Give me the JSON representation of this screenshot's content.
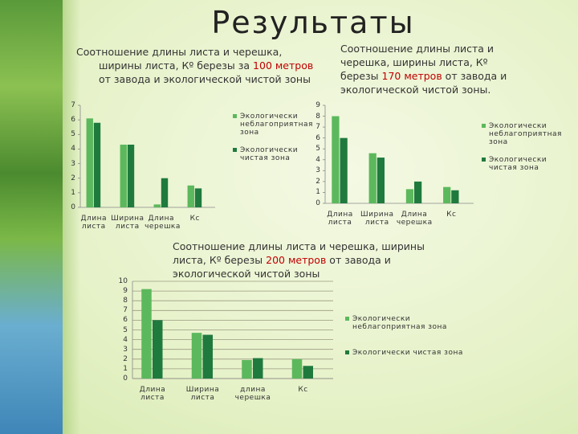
{
  "slide_title": "Результаты",
  "chart_data": [
    {
      "type": "bar",
      "title": [
        {
          "text": "Соотношение длины листа и черешка, ширины листа, Кº березы за ",
          "color": "#333333"
        },
        {
          "text": "100 метров",
          "color": "#c00000"
        },
        {
          "text": " от завода и экологической чистой зоны",
          "color": "#333333"
        }
      ],
      "categories": [
        "Длина листа",
        "Ширина листа",
        "Длина черешка",
        "Кс"
      ],
      "series": [
        {
          "name": "Экологически неблагоприятная зона",
          "color": "#5cb85c",
          "values": [
            6.1,
            4.3,
            0.2,
            1.5
          ]
        },
        {
          "name": "Экологически чистая зона",
          "color": "#1f7a3e",
          "values": [
            5.8,
            4.3,
            2.0,
            1.3
          ]
        }
      ],
      "ylim": [
        0,
        7
      ],
      "yticks": [
        0,
        1,
        2,
        3,
        4,
        5,
        6,
        7
      ],
      "grid": false
    },
    {
      "type": "bar",
      "title": [
        {
          "text": "Соотношение длины листа и черешка, ширины листа, Кº березы ",
          "color": "#333333"
        },
        {
          "text": "170 метров",
          "color": "#c00000"
        },
        {
          "text": " от завода и экологической чистой зоны.",
          "color": "#333333"
        }
      ],
      "categories": [
        "Длина листа",
        "Ширина листа",
        "Длина черешка",
        "Кс"
      ],
      "series": [
        {
          "name": "Экологически неблагоприятная зона",
          "color": "#5cb85c",
          "values": [
            8,
            4.6,
            1.3,
            1.5
          ]
        },
        {
          "name": "Экологически чистая зона",
          "color": "#1f7a3e",
          "values": [
            6,
            4.2,
            2,
            1.2
          ]
        }
      ],
      "ylim": [
        0,
        9
      ],
      "yticks": [
        0,
        1,
        2,
        3,
        4,
        5,
        6,
        7,
        8,
        9
      ],
      "grid": false
    },
    {
      "type": "bar",
      "title": [
        {
          "text": "Соотношение длины листа и черешка, ширины листа, Кº березы  ",
          "color": "#333333"
        },
        {
          "text": "200 метров",
          "color": "#c00000"
        },
        {
          "text": " от завода и экологической чистой зоны",
          "color": "#333333"
        }
      ],
      "categories": [
        "Длина листа",
        "Ширина листа",
        "длина черешка",
        "Кс"
      ],
      "series": [
        {
          "name": "Экологически неблагоприятная зона",
          "color": "#5cb85c",
          "values": [
            9.2,
            4.7,
            1.9,
            2
          ]
        },
        {
          "name": "Экологически чистая зона",
          "color": "#1f7a3e",
          "values": [
            6,
            4.5,
            2.1,
            1.3
          ]
        }
      ],
      "ylim": [
        0,
        10
      ],
      "yticks": [
        0,
        1,
        2,
        3,
        4,
        5,
        6,
        7,
        8,
        9,
        10
      ],
      "grid": true
    }
  ]
}
